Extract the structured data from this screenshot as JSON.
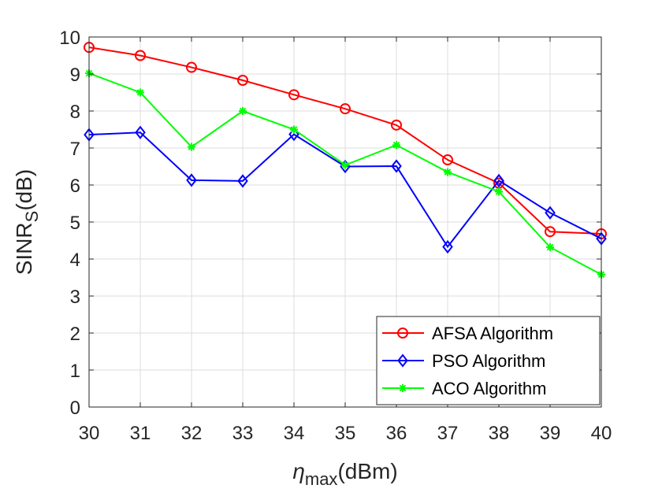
{
  "chart_data": {
    "type": "line",
    "x": [
      30,
      31,
      32,
      33,
      34,
      35,
      36,
      37,
      38,
      39,
      40
    ],
    "xlabel": {
      "main": "η",
      "sub": "max",
      "unit": "(dBm)"
    },
    "ylabel": {
      "main": "SINR",
      "sub": "S",
      "unit": "(dB)"
    },
    "xlim": [
      30,
      40
    ],
    "ylim": [
      0,
      10
    ],
    "xticks": [
      "30",
      "31",
      "32",
      "33",
      "34",
      "35",
      "36",
      "37",
      "38",
      "39",
      "40"
    ],
    "yticks": [
      "0",
      "1",
      "2",
      "3",
      "4",
      "5",
      "6",
      "7",
      "8",
      "9",
      "10"
    ],
    "grid": true,
    "legend_position": "bottom-right",
    "series": [
      {
        "name": "AFSA Algorithm",
        "color": "#ff0000",
        "marker": "circle",
        "values": [
          9.72,
          9.5,
          9.18,
          8.83,
          8.44,
          8.06,
          7.62,
          6.68,
          6.05,
          4.74,
          4.68
        ]
      },
      {
        "name": "PSO Algorithm",
        "color": "#0000ff",
        "marker": "diamond",
        "values": [
          7.36,
          7.42,
          6.13,
          6.11,
          7.37,
          6.5,
          6.51,
          4.33,
          6.12,
          5.25,
          4.55
        ]
      },
      {
        "name": "ACO Algorithm",
        "color": "#00ff00",
        "marker": "asterisk",
        "values": [
          9.02,
          8.5,
          7.03,
          8.0,
          7.5,
          6.54,
          7.08,
          6.35,
          5.82,
          4.32,
          3.58
        ]
      }
    ]
  }
}
